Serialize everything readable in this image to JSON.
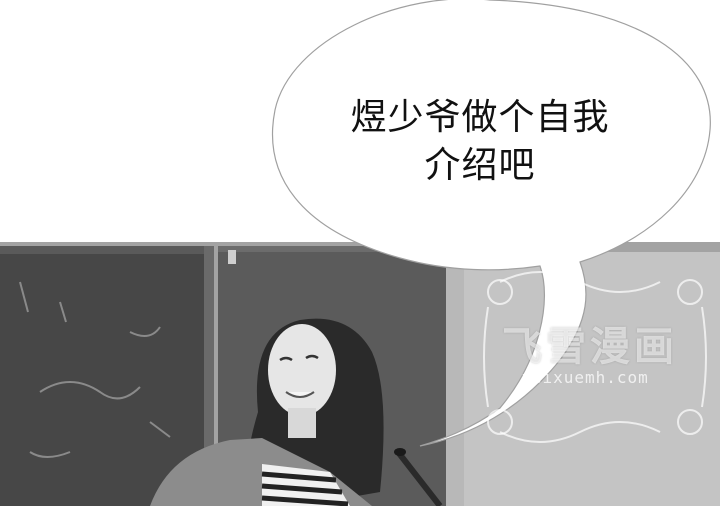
{
  "speech_bubble": {
    "line1": "煜少爷做个自我",
    "line2": "介绍吧"
  },
  "watermark": {
    "title": "飞雪漫画",
    "url": "feixuemh.com"
  },
  "palette": {
    "bubble_fill": "#ffffff",
    "bubble_stroke": "#9a9a9a",
    "chalkboard": "#4a4a4a",
    "wall": "#9c9c9c"
  }
}
